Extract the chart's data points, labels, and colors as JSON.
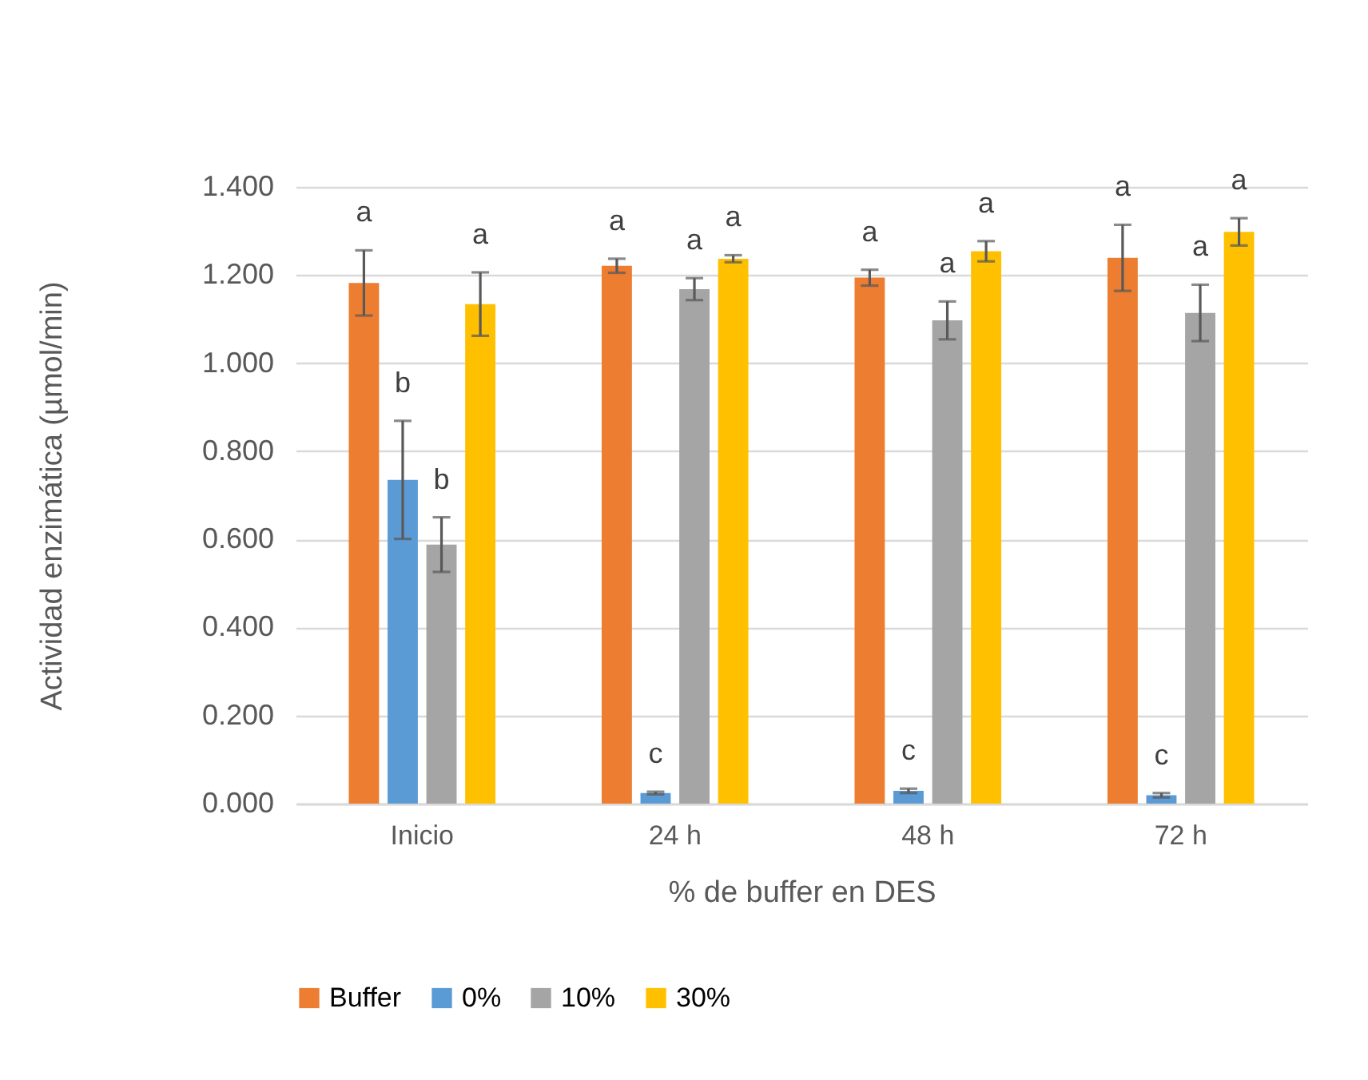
{
  "chart_data": {
    "type": "bar",
    "xlabel": "% de buffer en DES",
    "ylabel": "Actividad enzimática (µmol/min)",
    "categories": [
      "Inicio",
      "24 h",
      "48 h",
      "72 h"
    ],
    "series": [
      {
        "name": "Buffer",
        "color": "#ed7d31",
        "values": [
          1.182,
          1.221,
          1.194,
          1.239
        ],
        "errors": [
          0.074,
          0.016,
          0.018,
          0.075
        ],
        "value_labels": [
          "a",
          "a",
          "a",
          "a"
        ]
      },
      {
        "name": "0%",
        "color": "#5b9bd5",
        "values": [
          0.735,
          0.024,
          0.029,
          0.019
        ],
        "errors": [
          0.134,
          0.003,
          0.005,
          0.005
        ],
        "value_labels": [
          "b",
          "c",
          "c",
          "c"
        ]
      },
      {
        "name": "10%",
        "color": "#a5a5a5",
        "values": [
          0.588,
          1.168,
          1.097,
          1.114
        ],
        "errors": [
          0.062,
          0.025,
          0.043,
          0.064
        ],
        "value_labels": [
          "b",
          "a",
          "a",
          "a"
        ]
      },
      {
        "name": "30%",
        "color": "#ffc000",
        "values": [
          1.134,
          1.237,
          1.254,
          1.298
        ],
        "errors": [
          0.072,
          0.008,
          0.023,
          0.031
        ],
        "value_labels": [
          "a",
          "a",
          "a",
          "a"
        ]
      }
    ],
    "ylim": [
      0,
      1.4
    ],
    "yticks": [
      {
        "value": 0,
        "label": "0.000"
      },
      {
        "value": 0.2,
        "label": "0.200"
      },
      {
        "value": 0.4,
        "label": "0.400"
      },
      {
        "value": 0.6,
        "label": "0.600"
      },
      {
        "value": 0.8,
        "label": "0.800"
      },
      {
        "value": 1.0,
        "label": "1.000"
      },
      {
        "value": 1.2,
        "label": "1.200"
      },
      {
        "value": 1.4,
        "label": "1.400"
      }
    ],
    "grid": "y",
    "legend": "bottom"
  }
}
